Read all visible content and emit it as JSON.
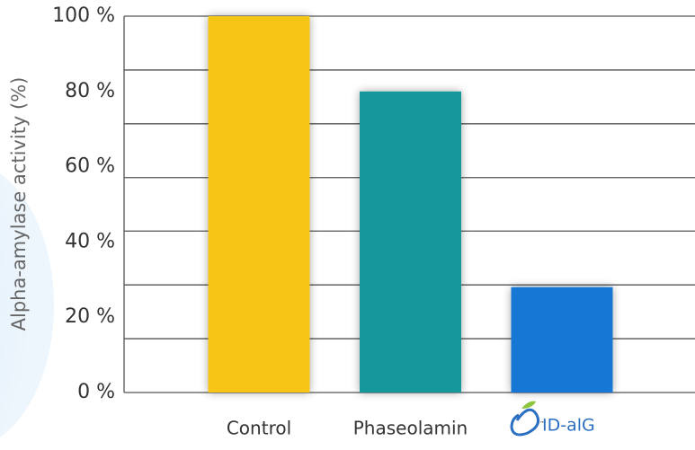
{
  "chart_data": {
    "type": "bar",
    "ylabel": "Alpha-amylase activity (%)",
    "categories": [
      "Control",
      "Phaseolamin",
      "ID-alG"
    ],
    "values": [
      100,
      80,
      28
    ],
    "colors": [
      "#f6c516",
      "#14979b",
      "#1478d4"
    ],
    "ylim": [
      0,
      100
    ],
    "yticks": [
      {
        "value": 0,
        "label": "0 %"
      },
      {
        "value": 20,
        "label": "20 %"
      },
      {
        "value": 40,
        "label": "40 %"
      },
      {
        "value": 60,
        "label": "60 %"
      },
      {
        "value": 80,
        "label": "80 %"
      },
      {
        "value": 100,
        "label": "100 %"
      }
    ],
    "ygrid": [
      0,
      14.3,
      28.6,
      42.9,
      57.1,
      71.4,
      85.7,
      100
    ]
  }
}
